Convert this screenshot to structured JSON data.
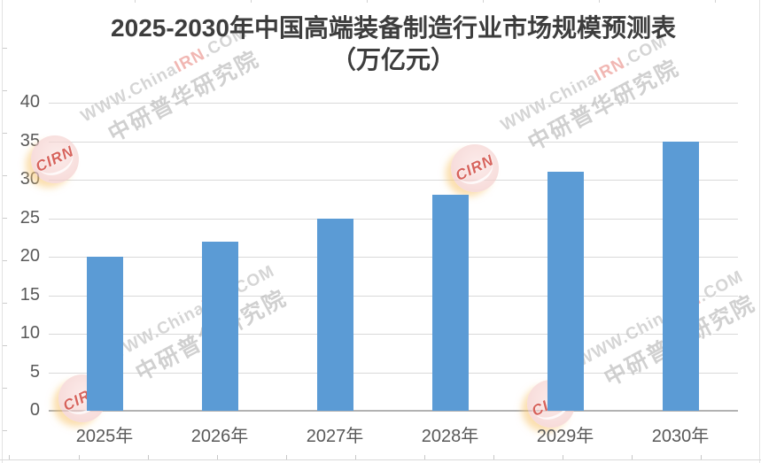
{
  "chart_data": {
    "type": "bar",
    "title": "2025-2030年中国高端装备制造行业市场规模预测表",
    "subtitle": "（万亿元）",
    "categories": [
      "2025年",
      "2026年",
      "2027年",
      "2028年",
      "2029年",
      "2030年"
    ],
    "values": [
      20,
      22,
      25,
      28,
      31,
      35
    ],
    "xlabel": "",
    "ylabel": "",
    "ylim": [
      0,
      40
    ],
    "yticks": [
      0,
      5,
      10,
      15,
      20,
      25,
      30,
      35,
      40
    ],
    "grid": "horizontal",
    "legend": "none",
    "bar_color": "#5b9bd5",
    "gridline_color": "#d9d9d9",
    "axis_line_color": "#b2b2b2",
    "tick_label_color": "#595959",
    "title_color": "#3d3d3d"
  },
  "watermark": {
    "logo_text": "CIRN",
    "url_prefix": "WWW.China",
    "url_highlight": "IRN",
    "url_suffix": ".COM",
    "org_text": "中研普华研究院"
  }
}
